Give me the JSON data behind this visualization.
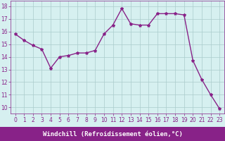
{
  "x": [
    0,
    1,
    2,
    3,
    4,
    5,
    6,
    7,
    8,
    9,
    10,
    11,
    12,
    13,
    14,
    15,
    16,
    17,
    18,
    19,
    20,
    21,
    22,
    23
  ],
  "y": [
    15.8,
    15.3,
    14.9,
    14.6,
    13.1,
    14.0,
    14.1,
    14.3,
    14.3,
    14.5,
    15.8,
    16.5,
    17.8,
    16.6,
    16.5,
    16.5,
    17.4,
    17.4,
    17.4,
    17.3,
    13.7,
    12.2,
    11.0,
    9.9
  ],
  "line_color": "#882288",
  "marker": "*",
  "marker_size": 3,
  "bg_color": "#d6f0f0",
  "grid_color": "#aacccc",
  "xlabel": "Windchill (Refroidissement éolien,°C)",
  "xlabel_color": "#ffffff",
  "xlabel_bg": "#882288",
  "yticks": [
    10,
    11,
    12,
    13,
    14,
    15,
    16,
    17,
    18
  ],
  "xticks": [
    0,
    1,
    2,
    3,
    4,
    5,
    6,
    7,
    8,
    9,
    10,
    11,
    12,
    13,
    14,
    15,
    16,
    17,
    18,
    19,
    20,
    21,
    22,
    23
  ],
  "ylim": [
    9.5,
    18.4
  ],
  "xlim": [
    -0.5,
    23.5
  ],
  "tick_fontsize": 5.5,
  "xlabel_fontsize": 6.5
}
